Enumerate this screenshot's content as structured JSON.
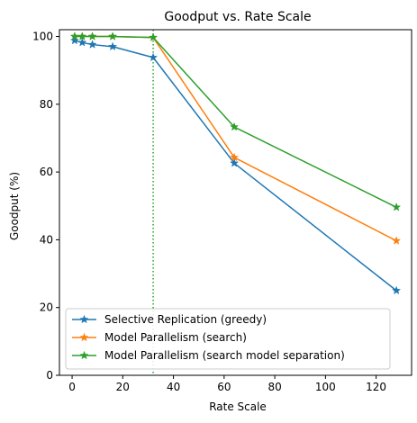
{
  "chart_data": {
    "type": "line",
    "title": "Goodput vs. Rate Scale",
    "xlabel": "Rate Scale",
    "ylabel": "Goodput (%)",
    "xlim": [
      -5,
      134
    ],
    "ylim": [
      0,
      102
    ],
    "xticks": [
      0,
      20,
      40,
      60,
      80,
      100,
      120
    ],
    "yticks": [
      0,
      20,
      40,
      60,
      80,
      100
    ],
    "grid": false,
    "legend_position": "lower-left",
    "marker": "star",
    "reference_line": {
      "x": 32,
      "style": "dotted",
      "color": "#2ca02c"
    },
    "series": [
      {
        "name": "Selective Replication (greedy)",
        "color": "#1f77b4",
        "x": [
          1,
          4,
          8,
          16,
          32,
          64,
          128
        ],
        "values": [
          98.8,
          98.2,
          97.6,
          97.0,
          93.8,
          62.6,
          25.0
        ]
      },
      {
        "name": "Model Parallelism (search)",
        "color": "#ff7f0e",
        "x": [
          1,
          4,
          8,
          16,
          32,
          64,
          128
        ],
        "values": [
          100,
          100,
          100,
          100,
          99.7,
          64.3,
          39.7
        ]
      },
      {
        "name": "Model Parallelism (search model separation)",
        "color": "#2ca02c",
        "x": [
          1,
          4,
          8,
          16,
          32,
          64,
          128
        ],
        "values": [
          100,
          100,
          100,
          100,
          99.7,
          73.3,
          49.6
        ]
      }
    ]
  }
}
